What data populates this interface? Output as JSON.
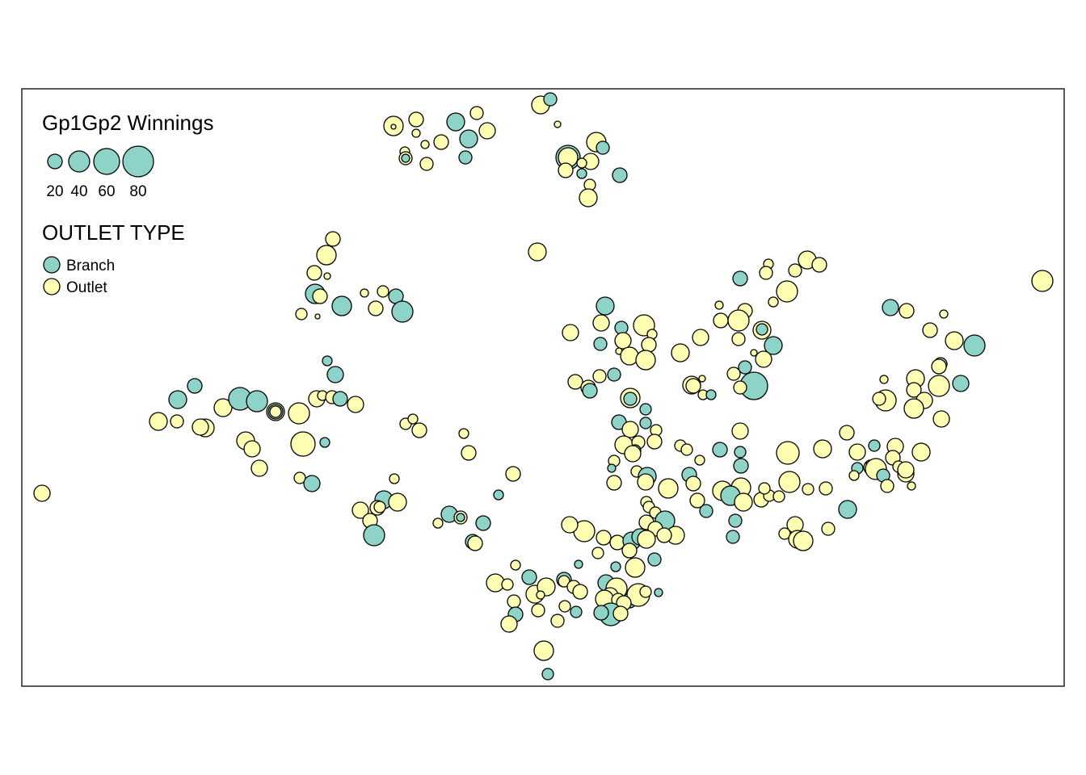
{
  "map": {
    "legend": {
      "size_title": "Gp1Gp2 Winnings",
      "size_values": [
        20,
        40,
        60,
        80
      ],
      "size_labels": [
        "20",
        "40",
        "60",
        "80"
      ],
      "type_title": "OUTLET TYPE",
      "types": [
        {
          "label": "Branch",
          "color": "#8dd3c7"
        },
        {
          "label": "Outlet",
          "color": "#ffffb3"
        }
      ]
    },
    "colors": {
      "branch": "#8dd3c7",
      "outlet": "#ffffb3",
      "border": "#000000"
    }
  }
}
